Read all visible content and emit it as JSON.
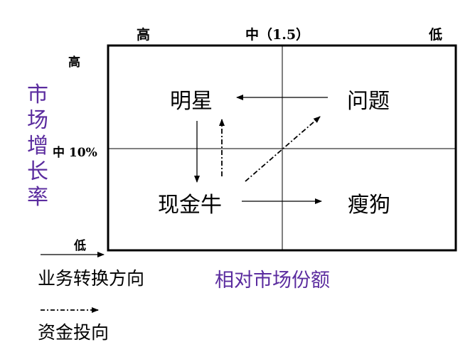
{
  "top_labels": {
    "high": "高",
    "mid": "中（1.5）",
    "low": "低"
  },
  "side_labels": {
    "high": "高",
    "mid": "中 10%",
    "low": "低"
  },
  "y_axis_title": [
    "市",
    "场",
    "增",
    "长",
    "率"
  ],
  "x_axis_title": "相对市场份额",
  "quadrants": {
    "star": "明星",
    "question": "问题",
    "cash_cow": "现金牛",
    "dog": "瘦狗"
  },
  "legend": {
    "business_transition": "业务转换方向",
    "capital_flow": "资金投向"
  },
  "colors": {
    "axis_title": "#5B2C9F",
    "lines": "#000000"
  }
}
